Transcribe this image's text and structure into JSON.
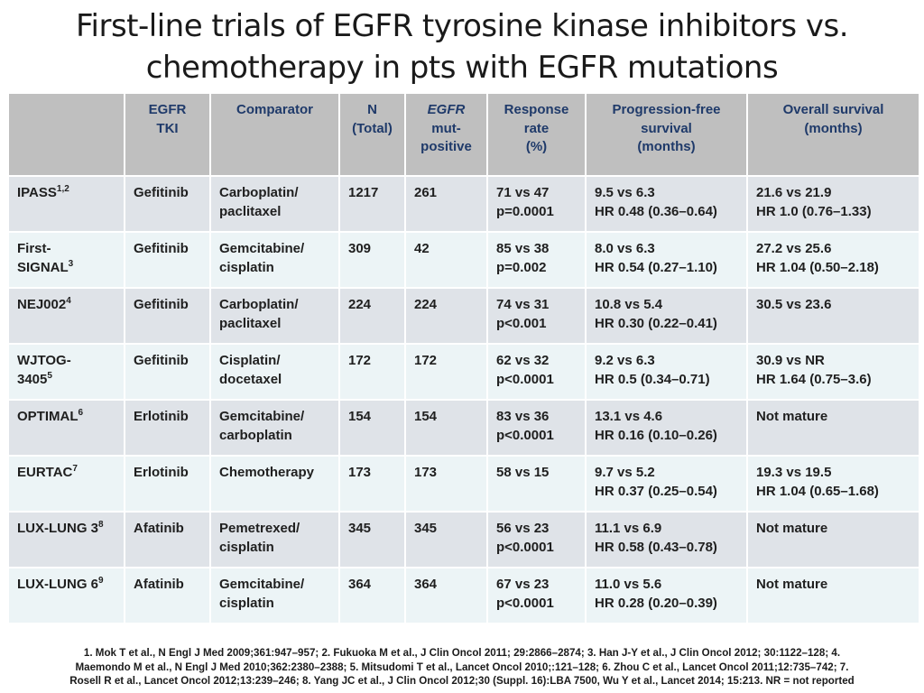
{
  "title": {
    "line1": "First-line trials of EGFR tyrosine kinase inhibitors vs.",
    "line2": "chemotherapy in pts with EGFR mutations"
  },
  "table": {
    "headers": {
      "trial": "",
      "tki": [
        "EGFR",
        "TKI"
      ],
      "comparator": "Comparator",
      "n": [
        "N",
        "(Total)"
      ],
      "mut": [
        "EGFR",
        "mut-",
        "positive"
      ],
      "response": [
        "Response",
        "rate",
        "(%)"
      ],
      "pfs": [
        "Progression-free",
        "survival",
        "(months)"
      ],
      "os": [
        "Overall survival",
        "(months)"
      ]
    },
    "rows": [
      {
        "trial": [
          "IPASS"
        ],
        "sup": "1,2",
        "tki": "Gefitinib",
        "comparator": [
          "Carboplatin/",
          "paclitaxel"
        ],
        "n": "1217",
        "mut": "261",
        "response": [
          "71 vs 47",
          "p=0.0001"
        ],
        "pfs": [
          "9.5 vs 6.3",
          "HR 0.48 (0.36–0.64)"
        ],
        "os": [
          "21.6 vs 21.9",
          "HR 1.0 (0.76–1.33)"
        ]
      },
      {
        "trial": [
          "First-",
          "SIGNAL"
        ],
        "sup": "3",
        "tki": "Gefitinib",
        "comparator": [
          "Gemcitabine/",
          "cisplatin"
        ],
        "n": "309",
        "mut": "42",
        "response": [
          "85 vs 38",
          "p=0.002"
        ],
        "pfs": [
          "8.0 vs 6.3",
          "HR 0.54 (0.27–1.10)"
        ],
        "os": [
          "27.2 vs 25.6",
          "HR 1.04 (0.50–2.18)"
        ]
      },
      {
        "trial": [
          "NEJ002"
        ],
        "sup": "4",
        "tki": "Gefitinib",
        "comparator": [
          "Carboplatin/",
          "paclitaxel"
        ],
        "n": "224",
        "mut": "224",
        "response": [
          "74 vs 31",
          "p<0.001"
        ],
        "pfs": [
          "10.8 vs 5.4",
          "HR 0.30 (0.22–0.41)"
        ],
        "os": [
          "30.5 vs 23.6",
          ""
        ]
      },
      {
        "trial": [
          "WJTOG-",
          "3405"
        ],
        "sup": "5",
        "tki": "Gefitinib",
        "comparator": [
          "Cisplatin/",
          "docetaxel"
        ],
        "n": "172",
        "mut": "172",
        "response": [
          "62 vs 32",
          "p<0.0001"
        ],
        "pfs": [
          "9.2 vs 6.3",
          "HR 0.5 (0.34–0.71)"
        ],
        "os": [
          "30.9 vs NR",
          "HR 1.64 (0.75–3.6)"
        ]
      },
      {
        "trial": [
          "OPTIMAL"
        ],
        "sup": "6",
        "tki": "Erlotinib",
        "comparator": [
          "Gemcitabine/",
          "carboplatin"
        ],
        "n": "154",
        "mut": "154",
        "response": [
          "83 vs 36",
          "p<0.0001"
        ],
        "pfs": [
          "13.1 vs 4.6",
          "HR 0.16 (0.10–0.26)"
        ],
        "os": [
          "Not mature",
          ""
        ]
      },
      {
        "trial": [
          "EURTAC"
        ],
        "sup": "7",
        "tki": "Erlotinib",
        "comparator": [
          "Chemotherapy",
          ""
        ],
        "n": "173",
        "mut": "173",
        "response": [
          "58 vs 15",
          ""
        ],
        "pfs": [
          "9.7 vs 5.2",
          "HR 0.37 (0.25–0.54)"
        ],
        "os": [
          "19.3 vs 19.5",
          "HR 1.04 (0.65–1.68)"
        ]
      },
      {
        "trial": [
          "LUX-LUNG 3"
        ],
        "sup": "8",
        "tki": "Afatinib",
        "comparator": [
          "Pemetrexed/",
          "cisplatin"
        ],
        "n": "345",
        "mut": "345",
        "response": [
          "56 vs 23",
          "p<0.0001"
        ],
        "pfs": [
          "11.1 vs 6.9",
          "HR 0.58 (0.43–0.78)"
        ],
        "os": [
          "Not mature",
          ""
        ]
      },
      {
        "trial": [
          "LUX-LUNG 6"
        ],
        "sup": "9",
        "tki": "Afatinib",
        "comparator": [
          "Gemcitabine/",
          "cisplatin"
        ],
        "n": "364",
        "mut": "364",
        "response": [
          "67 vs 23",
          "p<0.0001"
        ],
        "pfs": [
          "11.0 vs 5.6",
          "HR 0.28 (0.20–0.39)"
        ],
        "os": [
          "Not mature",
          ""
        ]
      }
    ]
  },
  "footnote": {
    "line1": "1. Mok T et al., N Engl J Med 2009;361:947–957; 2. Fukuoka M et al., J Clin Oncol 2011; 29:2866–2874; 3. Han J-Y et al., J Clin Oncol 2012; 30:1122–128; 4.",
    "line2": "Maemondo M et al., N Engl J Med 2010;362:2380–2388; 5. Mitsudomi T et al., Lancet Oncol 2010;:121–128; 6. Zhou C et al., Lancet Oncol 2011;12:735–742;  7.",
    "line3": "Rosell R et al., Lancet Oncol 2012;13:239–246; 8. Yang JC et al., J Clin Oncol 2012;30 (Suppl. 16):LBA 7500, Wu  Y et al., Lancet 2014; 15:213. NR = not reported"
  },
  "colors": {
    "header_bg": "#bfbfbf",
    "header_text": "#1f3a6a",
    "row_odd_bg": "#dfe3e8",
    "row_even_bg": "#ecf4f6"
  }
}
